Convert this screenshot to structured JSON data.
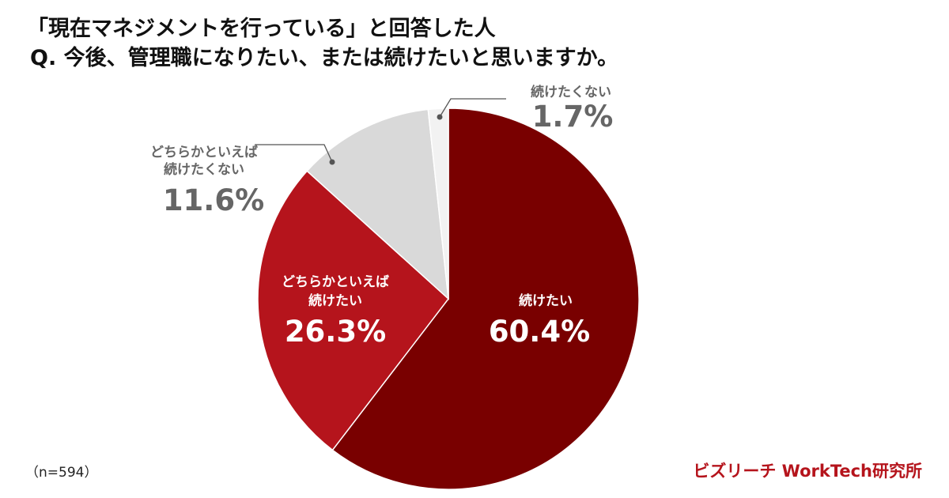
{
  "title": {
    "line1": "「現在マネジメントを行っている」と回答した人",
    "line2": "Q. 今後、管理職になりたい、または続けたいと思いますか。"
  },
  "chart_data": {
    "type": "pie",
    "slices": [
      {
        "label": "続けたい",
        "value": 60.4,
        "display": "60.4%",
        "color": "#790000"
      },
      {
        "label": "どちらかといえば続けたい",
        "label_lines": [
          "どちらかといえば",
          "続けたい"
        ],
        "value": 26.3,
        "display": "26.3%",
        "color": "#b5141c"
      },
      {
        "label": "どちらかといえば続けたくない",
        "label_lines": [
          "どちらかといえば",
          "続けたくない"
        ],
        "value": 11.6,
        "display": "11.6%",
        "color": "#d9d9d9"
      },
      {
        "label": "続けたくない",
        "value": 1.7,
        "display": "1.7%",
        "color": "#f2f2f2"
      }
    ]
  },
  "sample_size": "（n=594）",
  "brand": "ビズリーチ WorkTech研究所"
}
